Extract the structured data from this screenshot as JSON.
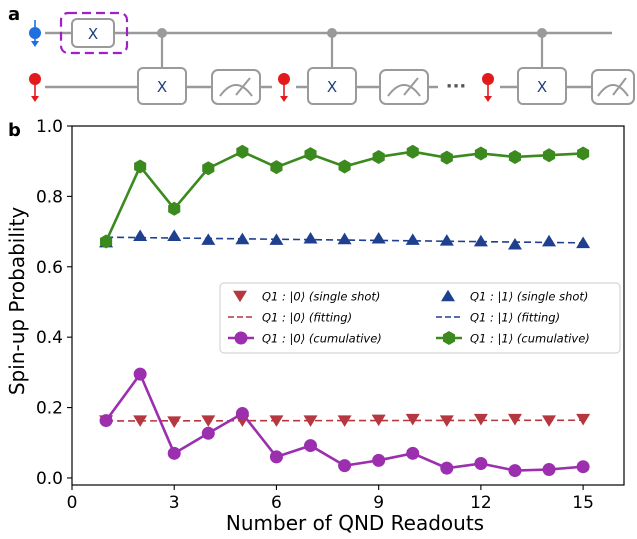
{
  "panels": {
    "a_label": "a",
    "b_label": "b"
  },
  "circuit": {
    "x_gate_label": "X",
    "ellipsis": "···",
    "colors": {
      "wire": "#9a9a9a",
      "q1_qubit": "#1f6fe0",
      "q2_qubit": "#e31a1c",
      "init_box": "#a020c8",
      "gate_text": "#1f3f7a"
    }
  },
  "chart_data": {
    "type": "line",
    "xlabel": "Number of QND Readouts",
    "ylabel": "Spin-up Probability",
    "xlim": [
      0,
      16.2
    ],
    "ylim": [
      -0.02,
      1.0
    ],
    "xticks": [
      0,
      3,
      6,
      9,
      12,
      15
    ],
    "yticks": [
      0.0,
      0.2,
      0.4,
      0.6,
      0.8,
      1.0
    ],
    "xtick_labels": [
      "0",
      "3",
      "6",
      "9",
      "12",
      "15"
    ],
    "ytick_labels": [
      "0.0",
      "0.2",
      "0.4",
      "0.6",
      "0.8",
      "1.0"
    ],
    "x": [
      1,
      2,
      3,
      4,
      5,
      6,
      7,
      8,
      9,
      10,
      11,
      12,
      13,
      14,
      15
    ],
    "series": [
      {
        "name_prefix": "Q1 : |0⟩",
        "name_suffix": "(single shot)",
        "kind": "single",
        "marker": "triangle-down",
        "color": "#b5373f",
        "values": [
          0.163,
          0.163,
          0.16,
          0.163,
          0.163,
          0.163,
          0.163,
          0.163,
          0.165,
          0.167,
          0.163,
          0.167,
          0.167,
          0.163,
          0.167
        ]
      },
      {
        "name_prefix": "Q1 : |1⟩",
        "name_suffix": "(single shot)",
        "kind": "single",
        "marker": "triangle-up",
        "color": "#1f3f8f",
        "values": [
          0.67,
          0.688,
          0.688,
          0.677,
          0.679,
          0.677,
          0.681,
          0.679,
          0.681,
          0.677,
          0.675,
          0.673,
          0.664,
          0.673,
          0.668
        ]
      },
      {
        "name_prefix": "Q1 : |0⟩",
        "name_suffix": "(fitting)",
        "kind": "fit",
        "color": "#b5373f",
        "line": [
          0.162,
          0.164
        ]
      },
      {
        "name_prefix": "Q1 : |1⟩",
        "name_suffix": "(fitting)",
        "kind": "fit",
        "color": "#1f3f8f",
        "line": [
          0.684,
          0.668
        ]
      },
      {
        "name_prefix": "Q1 : |0⟩",
        "name_suffix": "(cumulative)",
        "kind": "cumulative",
        "marker": "circle",
        "color": "#9b2fae",
        "values": [
          0.163,
          0.295,
          0.07,
          0.127,
          0.183,
          0.06,
          0.092,
          0.035,
          0.05,
          0.07,
          0.028,
          0.041,
          0.021,
          0.024,
          0.032
        ]
      },
      {
        "name_prefix": "Q1 : |1⟩",
        "name_suffix": "(cumulative)",
        "kind": "cumulative",
        "marker": "hexagon",
        "color": "#3a8a1e",
        "values": [
          0.672,
          0.885,
          0.765,
          0.88,
          0.927,
          0.883,
          0.92,
          0.885,
          0.912,
          0.927,
          0.91,
          0.922,
          0.912,
          0.917,
          0.922
        ]
      }
    ],
    "legend_position": "center-right",
    "grid": false
  }
}
